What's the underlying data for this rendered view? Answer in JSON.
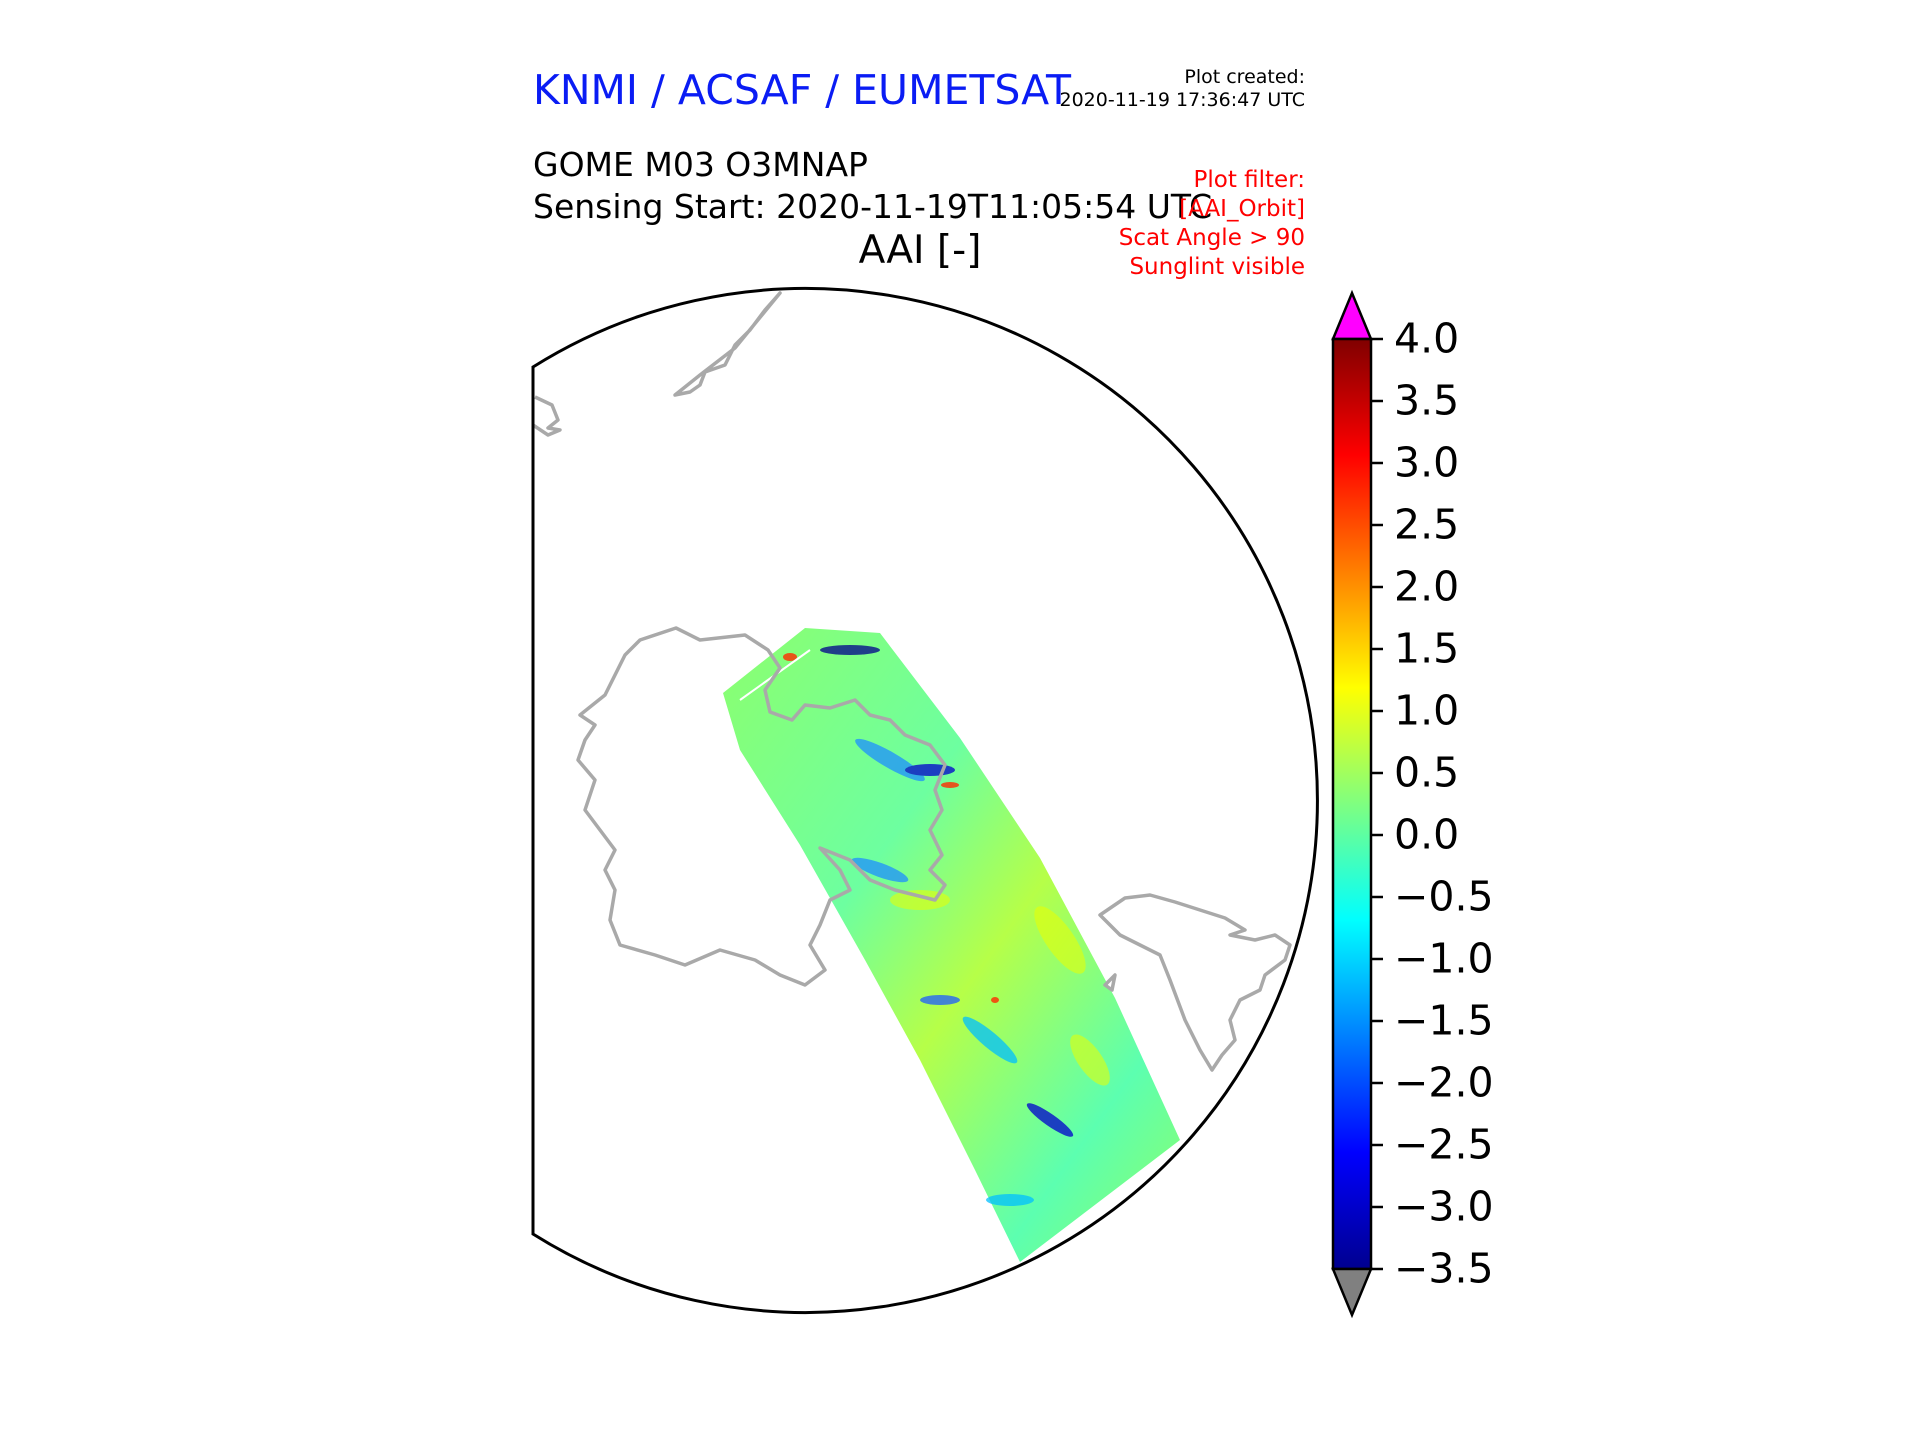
{
  "header": {
    "organisation": "KNMI / ACSAF / EUMETSAT",
    "plot_created_label": "Plot created:",
    "plot_created_value": "2020-11-19 17:36:47 UTC",
    "product": "GOME M03 O3MNAP",
    "sensing_start": "Sensing Start: 2020-11-19T11:05:54 UTC",
    "variable_title": "AAI [-]",
    "filters": [
      "Plot filter:",
      "[AAI_Orbit]",
      "Scat Angle > 90",
      "Sunglint visible"
    ]
  },
  "colorbar": {
    "ticks": [
      "4.0",
      "3.5",
      "3.0",
      "2.5",
      "2.0",
      "1.5",
      "1.0",
      "0.5",
      "0.0",
      "−0.5",
      "−1.0",
      "−1.5",
      "−2.0",
      "−2.5",
      "−3.0",
      "−3.5"
    ],
    "tick_values": [
      4.0,
      3.5,
      3.0,
      2.5,
      2.0,
      1.5,
      1.0,
      0.5,
      0.0,
      -0.5,
      -1.0,
      -1.5,
      -2.0,
      -2.5,
      -3.0,
      -3.5
    ],
    "range": [
      -3.5,
      4.0
    ],
    "colormap": "jet",
    "over_color": "#ff00ff",
    "under_color": "#808080"
  },
  "map": {
    "coastline_color": "#a9a9a9",
    "swath_dominant_color": "#7dff7a"
  }
}
